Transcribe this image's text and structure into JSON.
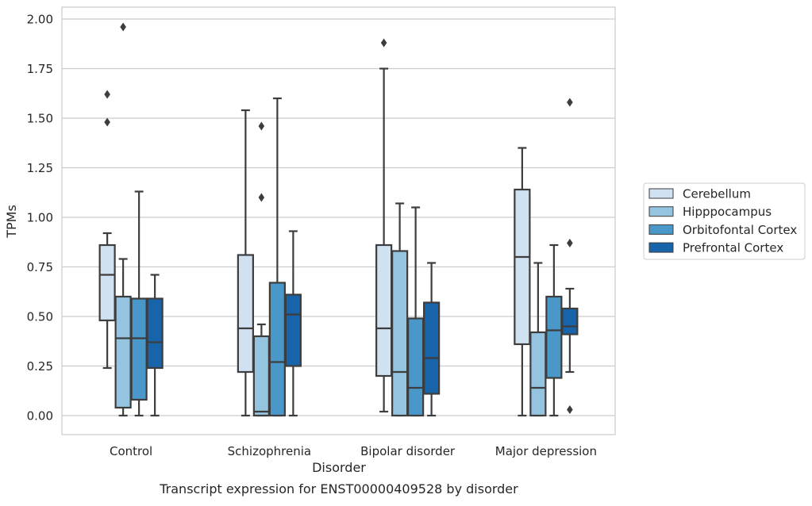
{
  "chart_data": {
    "type": "boxplot",
    "xlabel": "Disorder",
    "ylabel": "TPMs",
    "caption": "Transcript expression for ENST00000409528 by disorder",
    "categories": [
      "Control",
      "Schizophrenia",
      "Bipolar disorder",
      "Major depression"
    ],
    "ylim": [
      -0.1,
      2.06
    ],
    "yticks": [
      "0.00",
      "0.25",
      "0.50",
      "0.75",
      "1.00",
      "1.25",
      "1.50",
      "1.75",
      "2.00"
    ],
    "grid": "horizontal",
    "legend_placement": "right",
    "series": [
      {
        "name": "Cerebellum",
        "color": "#d0e1f2",
        "boxes": [
          {
            "whisker_low": 0.24,
            "q1": 0.48,
            "median": 0.71,
            "q3": 0.86,
            "whisker_high": 0.92,
            "outliers": [
              1.48,
              1.62
            ]
          },
          {
            "whisker_low": 0.0,
            "q1": 0.22,
            "median": 0.44,
            "q3": 0.81,
            "whisker_high": 1.54,
            "outliers": []
          },
          {
            "whisker_low": 0.02,
            "q1": 0.2,
            "median": 0.44,
            "q3": 0.86,
            "whisker_high": 1.75,
            "outliers": [
              1.88
            ]
          },
          {
            "whisker_low": 0.0,
            "q1": 0.36,
            "median": 0.8,
            "q3": 1.14,
            "whisker_high": 1.35,
            "outliers": []
          }
        ]
      },
      {
        "name": "Hipppocampus",
        "color": "#94c4df",
        "boxes": [
          {
            "whisker_low": 0.0,
            "q1": 0.04,
            "median": 0.39,
            "q3": 0.6,
            "whisker_high": 0.79,
            "outliers": [
              1.96
            ]
          },
          {
            "whisker_low": 0.0,
            "q1": 0.0,
            "median": 0.02,
            "q3": 0.4,
            "whisker_high": 0.46,
            "outliers": [
              1.1,
              1.46
            ]
          },
          {
            "whisker_low": 0.0,
            "q1": 0.0,
            "median": 0.22,
            "q3": 0.83,
            "whisker_high": 1.07,
            "outliers": []
          },
          {
            "whisker_low": 0.0,
            "q1": 0.0,
            "median": 0.14,
            "q3": 0.42,
            "whisker_high": 0.77,
            "outliers": []
          }
        ]
      },
      {
        "name": "Orbitofontal Cortex",
        "color": "#4a98c9",
        "boxes": [
          {
            "whisker_low": 0.0,
            "q1": 0.08,
            "median": 0.39,
            "q3": 0.59,
            "whisker_high": 1.13,
            "outliers": []
          },
          {
            "whisker_low": 0.0,
            "q1": 0.0,
            "median": 0.27,
            "q3": 0.67,
            "whisker_high": 1.6,
            "outliers": []
          },
          {
            "whisker_low": 0.0,
            "q1": 0.0,
            "median": 0.14,
            "q3": 0.49,
            "whisker_high": 1.05,
            "outliers": []
          },
          {
            "whisker_low": 0.0,
            "q1": 0.19,
            "median": 0.43,
            "q3": 0.6,
            "whisker_high": 0.86,
            "outliers": []
          }
        ]
      },
      {
        "name": "Prefrontal Cortex",
        "color": "#1764ab",
        "boxes": [
          {
            "whisker_low": 0.0,
            "q1": 0.24,
            "median": 0.37,
            "q3": 0.59,
            "whisker_high": 0.71,
            "outliers": []
          },
          {
            "whisker_low": 0.0,
            "q1": 0.25,
            "median": 0.51,
            "q3": 0.61,
            "whisker_high": 0.93,
            "outliers": []
          },
          {
            "whisker_low": 0.0,
            "q1": 0.11,
            "median": 0.29,
            "q3": 0.57,
            "whisker_high": 0.77,
            "outliers": []
          },
          {
            "whisker_low": 0.22,
            "q1": 0.41,
            "median": 0.45,
            "q3": 0.54,
            "whisker_high": 0.64,
            "outliers": [
              0.03,
              0.87,
              1.58
            ]
          }
        ]
      }
    ]
  }
}
